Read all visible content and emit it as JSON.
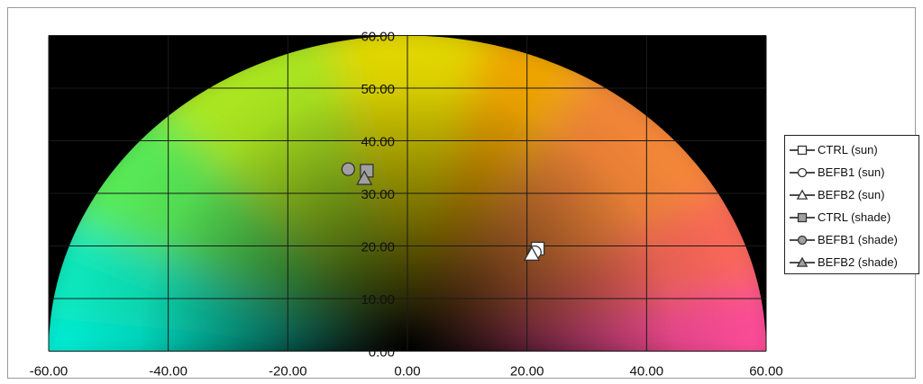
{
  "chart_data": {
    "type": "scatter",
    "title": "",
    "xlabel": "",
    "ylabel": "",
    "xlim": [
      -60,
      60
    ],
    "ylim": [
      0,
      60
    ],
    "x_ticks": [
      "-60.00",
      "-40.00",
      "-20.00",
      "0.00",
      "20.00",
      "40.00",
      "60.00"
    ],
    "y_ticks": [
      "0.00",
      "10.00",
      "20.00",
      "30.00",
      "40.00",
      "50.00",
      "60.00"
    ],
    "grid": true,
    "legend_position": "right",
    "background": "semicircular a*/b* color wheel on black",
    "series": [
      {
        "name": "CTRL (sun)",
        "marker": "square",
        "fill": "#ffffff",
        "points": [
          [
            21.8,
            19.5
          ]
        ]
      },
      {
        "name": "BEFB1 (sun)",
        "marker": "circle",
        "fill": "#ffffff",
        "points": [
          [
            21.3,
            18.8
          ]
        ]
      },
      {
        "name": "BEFB2 (sun)",
        "marker": "triangle",
        "fill": "#ffffff",
        "points": [
          [
            20.8,
            18.4
          ]
        ]
      },
      {
        "name": "CTRL (shade)",
        "marker": "square",
        "fill": "#a0a0a0",
        "points": [
          [
            -6.8,
            34.3
          ]
        ]
      },
      {
        "name": "BEFB1 (shade)",
        "marker": "circle",
        "fill": "#a0a0a0",
        "points": [
          [
            -9.9,
            34.6
          ]
        ]
      },
      {
        "name": "BEFB2 (shade)",
        "marker": "triangle",
        "fill": "#a0a0a0",
        "points": [
          [
            -7.2,
            32.8
          ]
        ]
      }
    ]
  }
}
